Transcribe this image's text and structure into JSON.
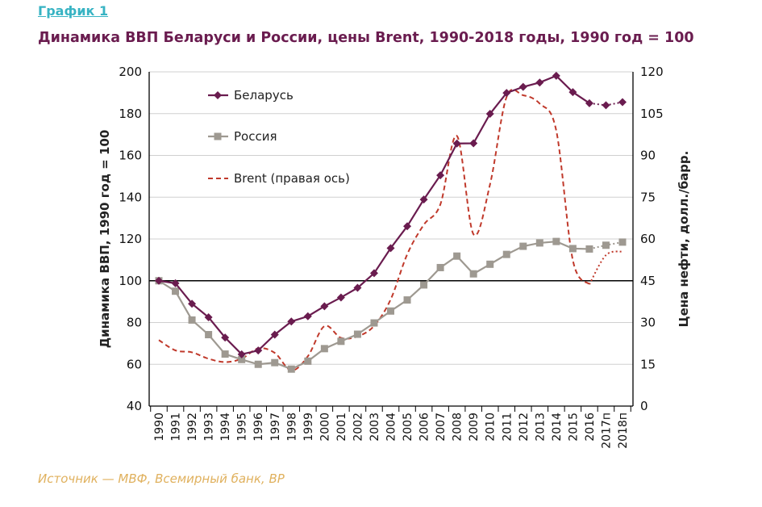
{
  "header": {
    "label": "График 1",
    "title": "Динамика ВВП Беларуси и России, цены Brent, 1990-2018 годы, 1990 год = 100"
  },
  "footer": {
    "source": "Источник — МВФ, Всемирный банк, BP"
  },
  "colors": {
    "belarus": "#6a1c4f",
    "russia": "#9e9991",
    "brent": "#c0392b",
    "baseline": "#000000",
    "grid": "#d0d0d0"
  },
  "chart_data": {
    "type": "line",
    "x": [
      "1990",
      "1991",
      "1992",
      "1993",
      "1994",
      "1995",
      "1996",
      "1997",
      "1998",
      "1999",
      "2000",
      "2001",
      "2002",
      "2003",
      "2004",
      "2005",
      "2006",
      "2007",
      "2008",
      "2009",
      "2010",
      "2011",
      "2012",
      "2013",
      "2014",
      "2015",
      "2016",
      "2017п",
      "2018п"
    ],
    "ylabel": "Динамика ВВП, 1990 год = 100",
    "y2label": "Цена нефти, долл./барр.",
    "ylim": [
      40,
      200
    ],
    "y2lim": [
      0,
      120
    ],
    "yticks": [
      "40",
      "60",
      "80",
      "100",
      "120",
      "140",
      "160",
      "180",
      "200"
    ],
    "y2ticks": [
      "0",
      "15",
      "30",
      "45",
      "60",
      "75",
      "90",
      "105",
      "120"
    ],
    "baseline": 100,
    "grid": "horizontal",
    "legend_position": "top-left",
    "series": [
      {
        "name": "Беларусь",
        "axis": "left",
        "marker": "diamond",
        "values": [
          100,
          98.8,
          89,
          82.5,
          72.8,
          64.8,
          66.6,
          74.2,
          80.5,
          83,
          87.8,
          92,
          96.6,
          103.6,
          115.6,
          126.1,
          138.9,
          150.5,
          165.7,
          165.8,
          179.9,
          189.9,
          192.8,
          194.9,
          198.1,
          190.3,
          185,
          184,
          185.5
        ]
      },
      {
        "name": "Россия",
        "axis": "left",
        "marker": "square",
        "values": [
          100,
          95,
          81.2,
          74.2,
          64.9,
          62.3,
          60,
          60.8,
          57.7,
          61.5,
          67.5,
          71,
          74.4,
          79.8,
          85.5,
          90.8,
          98,
          106.3,
          111.8,
          103.3,
          107.9,
          112.6,
          116.5,
          118.1,
          118.8,
          115.4,
          115.2,
          117,
          118.5
        ]
      },
      {
        "name": "Brent (правая ось)",
        "axis": "right",
        "dashed": true,
        "values": [
          23.7,
          20,
          19.3,
          17,
          15.8,
          17,
          20.7,
          19.1,
          12.8,
          17.9,
          28.7,
          24.5,
          25,
          28.8,
          38.3,
          54.5,
          65.1,
          72.4,
          97,
          61.7,
          79.6,
          111,
          111.6,
          108.6,
          98.9,
          52.4,
          43.7,
          54.2,
          55.5
        ]
      }
    ]
  }
}
